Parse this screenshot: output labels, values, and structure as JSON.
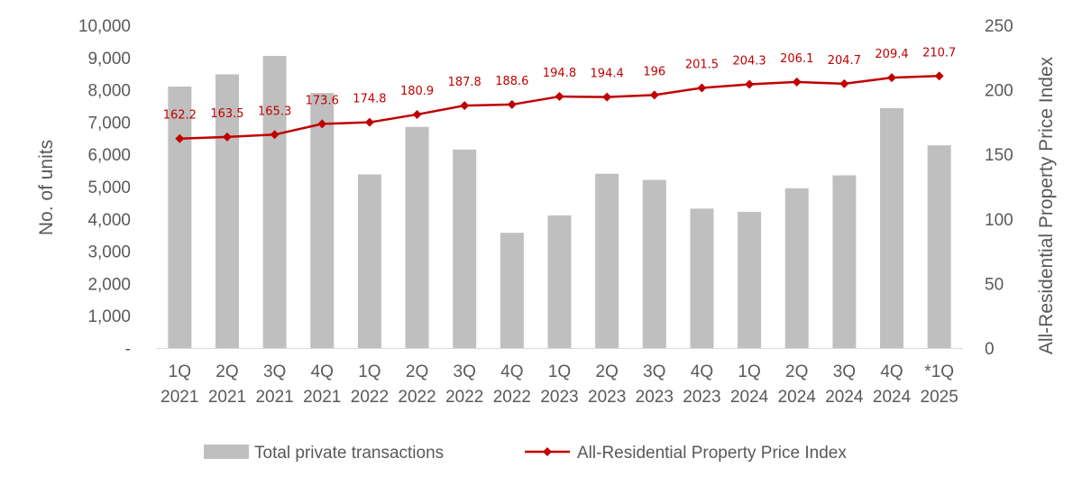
{
  "chart_data": {
    "type": "bar+line",
    "categories": [
      [
        "1Q",
        "2021"
      ],
      [
        "2Q",
        "2021"
      ],
      [
        "3Q",
        "2021"
      ],
      [
        "4Q",
        "2021"
      ],
      [
        "1Q",
        "2022"
      ],
      [
        "2Q",
        "2022"
      ],
      [
        "3Q",
        "2022"
      ],
      [
        "4Q",
        "2022"
      ],
      [
        "1Q",
        "2023"
      ],
      [
        "2Q",
        "2023"
      ],
      [
        "3Q",
        "2023"
      ],
      [
        "4Q",
        "2023"
      ],
      [
        "1Q",
        "2024"
      ],
      [
        "2Q",
        "2024"
      ],
      [
        "3Q",
        "2024"
      ],
      [
        "4Q",
        "2024"
      ],
      [
        "*1Q",
        "2025"
      ]
    ],
    "series": [
      {
        "name": "Total private transactions",
        "type": "bar",
        "axis": "left",
        "color": "#bfbfbf",
        "values": [
          8100,
          8480,
          9050,
          7900,
          5380,
          6850,
          6150,
          3570,
          4110,
          5400,
          5210,
          4320,
          4220,
          4950,
          5350,
          7430,
          6280
        ]
      },
      {
        "name": "All-Residential Property Price Index",
        "type": "line",
        "axis": "right",
        "color": "#c00000",
        "values": [
          162.2,
          163.5,
          165.3,
          173.6,
          174.8,
          180.9,
          187.8,
          188.6,
          194.8,
          194.4,
          196,
          201.5,
          204.3,
          206.1,
          204.7,
          209.4,
          210.7
        ],
        "labels": [
          "162.2",
          "163.5",
          "165.3",
          "173.6",
          "174.8",
          "180.9",
          "187.8",
          "188.6",
          "194.8",
          "194.4",
          "196",
          "201.5",
          "204.3",
          "206.1",
          "204.7",
          "209.4",
          "210.7"
        ]
      }
    ],
    "y_left": {
      "label": "No. of units",
      "range": [
        0,
        10000
      ],
      "ticks": [
        0,
        1000,
        2000,
        3000,
        4000,
        5000,
        6000,
        7000,
        8000,
        9000,
        10000
      ],
      "tick_labels": [
        "-",
        "1,000",
        "2,000",
        "3,000",
        "4,000",
        "5,000",
        "6,000",
        "7,000",
        "8,000",
        "9,000",
        "10,000"
      ]
    },
    "y_right": {
      "label": "All-Residential Property Price Index",
      "range": [
        0,
        250
      ],
      "ticks": [
        0,
        50,
        100,
        150,
        200,
        250
      ],
      "tick_labels": [
        "0",
        "50",
        "100",
        "150",
        "200",
        "250"
      ]
    },
    "legend": {
      "position": "bottom",
      "items": [
        "Total private transactions",
        "All-Residential Property Price Index"
      ]
    }
  }
}
